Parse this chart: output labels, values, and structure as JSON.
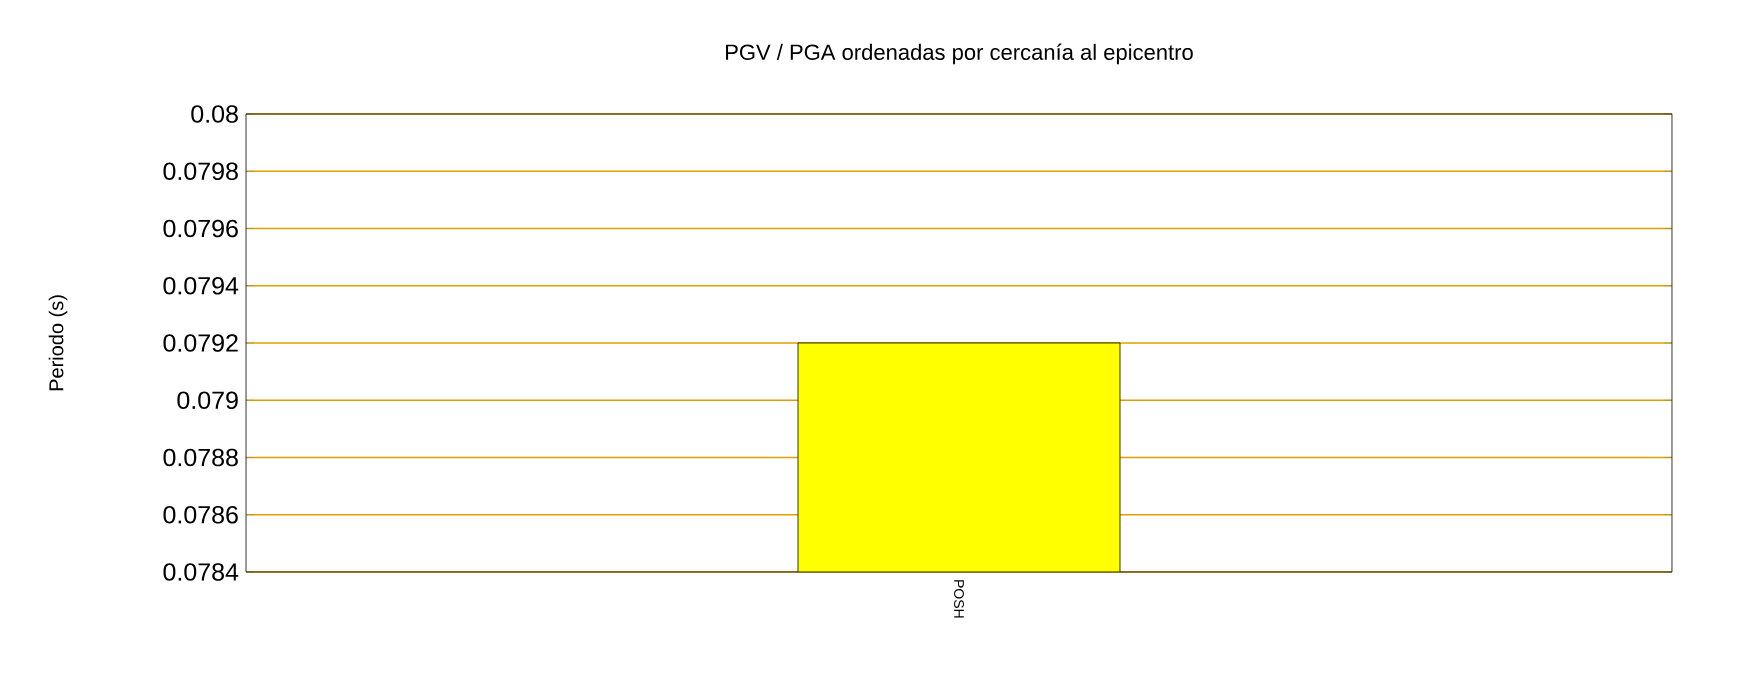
{
  "chart_data": {
    "type": "bar",
    "title": "PGV / PGA ordenadas por cercanía al epicentro",
    "ylabel": "Periodo (s)",
    "categories": [
      "POSH"
    ],
    "values": [
      0.0792
    ],
    "color": "#ffff00",
    "ylim": [
      0.0784,
      0.08
    ],
    "yticks": [
      0.0784,
      0.0786,
      0.0788,
      0.079,
      0.0792,
      0.0794,
      0.0796,
      0.0798,
      0.08
    ],
    "grid": "y"
  }
}
